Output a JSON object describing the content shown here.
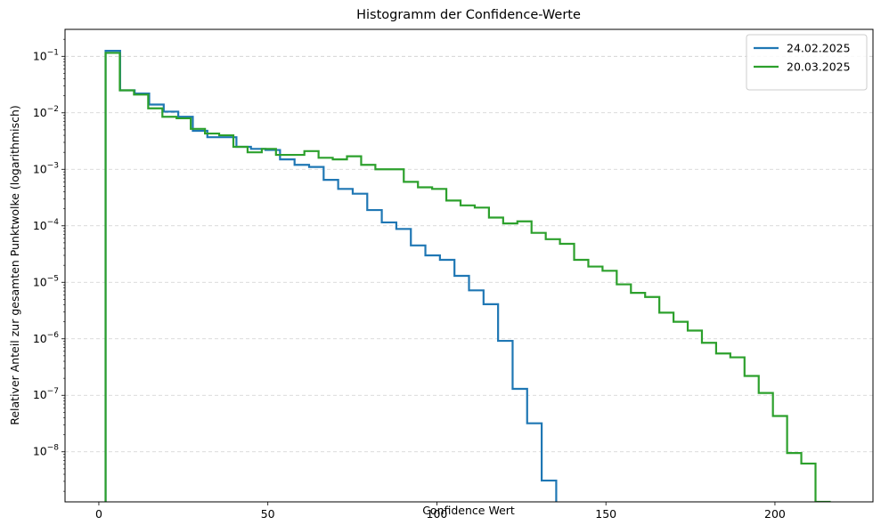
{
  "chart_data": {
    "type": "line",
    "step": true,
    "title": "Histogramm der Confidence-Werte",
    "xlabel": "Confidence Wert",
    "ylabel": "Relativer Anteil zur gesamten Punktwolke (logarithmisch)",
    "xlim": [
      -10,
      229
    ],
    "ylim": [
      1.3e-09,
      0.3
    ],
    "yscale": "log",
    "grid": "y-dashed",
    "legend_position": "top-right",
    "x_ticks": [
      0,
      50,
      100,
      150,
      200
    ],
    "x_tick_labels": [
      "0",
      "50",
      "100",
      "150",
      "200"
    ],
    "y_ticks": [
      1e-08,
      1e-07,
      1e-06,
      1e-05,
      0.0001,
      0.001,
      0.01,
      0.1
    ],
    "y_tick_exponents": [
      "−8",
      "−7",
      "−6",
      "−5",
      "−4",
      "−3",
      "−2",
      "−1"
    ],
    "y_tick_base": "10",
    "series": [
      {
        "name": "24.02.2025",
        "color": "#1f77b4",
        "edges": [
          2.0,
          6.3,
          10.6,
          14.9,
          19.2,
          23.5,
          27.8,
          32.1,
          36.4,
          40.7,
          45.0,
          49.3,
          53.6,
          57.9,
          62.2,
          66.5,
          70.8,
          75.1,
          79.4,
          83.7,
          88.0,
          92.3,
          96.6,
          100.9,
          105.2,
          109.5,
          113.8,
          118.1,
          122.4,
          126.7,
          131.0,
          135.3
        ],
        "values": [
          0.125,
          0.025,
          0.022,
          0.014,
          0.0105,
          0.0085,
          0.0048,
          0.0037,
          0.0037,
          0.0025,
          0.0023,
          0.0022,
          0.0015,
          0.0012,
          0.0011,
          0.00065,
          0.00045,
          0.00037,
          0.00019,
          0.000115,
          8.8e-05,
          4.5e-05,
          3e-05,
          2.5e-05,
          1.3e-05,
          7.2e-06,
          4.1e-06,
          9.2e-07,
          1.3e-07,
          3.2e-08,
          3.1e-09
        ]
      },
      {
        "name": "20.03.2025",
        "color": "#2ca02c",
        "edges": [
          2.0,
          6.2,
          10.4,
          14.6,
          18.8,
          23.0,
          27.2,
          31.4,
          35.6,
          39.8,
          44.0,
          48.2,
          52.4,
          56.6,
          60.8,
          65.0,
          69.2,
          73.4,
          77.6,
          81.8,
          86.0,
          90.2,
          94.4,
          98.6,
          102.8,
          107.0,
          111.2,
          115.4,
          119.6,
          123.8,
          128.0,
          132.2,
          136.4,
          140.6,
          144.8,
          149.0,
          153.2,
          157.4,
          161.6,
          165.8,
          170.0,
          174.2,
          178.4,
          182.6,
          186.8,
          191.0,
          195.2,
          199.4,
          203.6,
          207.8,
          212.0,
          216.2
        ],
        "values": [
          0.115,
          0.025,
          0.021,
          0.012,
          0.0085,
          0.008,
          0.0052,
          0.0043,
          0.004,
          0.0025,
          0.002,
          0.0023,
          0.0018,
          0.0018,
          0.0021,
          0.0016,
          0.0015,
          0.0017,
          0.0012,
          0.001,
          0.001,
          0.0006,
          0.00048,
          0.00045,
          0.00028,
          0.00023,
          0.00021,
          0.00014,
          0.00011,
          0.00012,
          7.5e-05,
          5.8e-05,
          4.8e-05,
          2.5e-05,
          1.9e-05,
          1.6e-05,
          9.2e-06,
          6.5e-06,
          5.5e-06,
          2.9e-06,
          2e-06,
          1.4e-06,
          8.5e-07,
          5.5e-07,
          4.7e-07,
          2.2e-07,
          1.1e-07,
          4.3e-08,
          9.5e-09,
          6.2e-09,
          1.3e-09
        ]
      }
    ]
  }
}
